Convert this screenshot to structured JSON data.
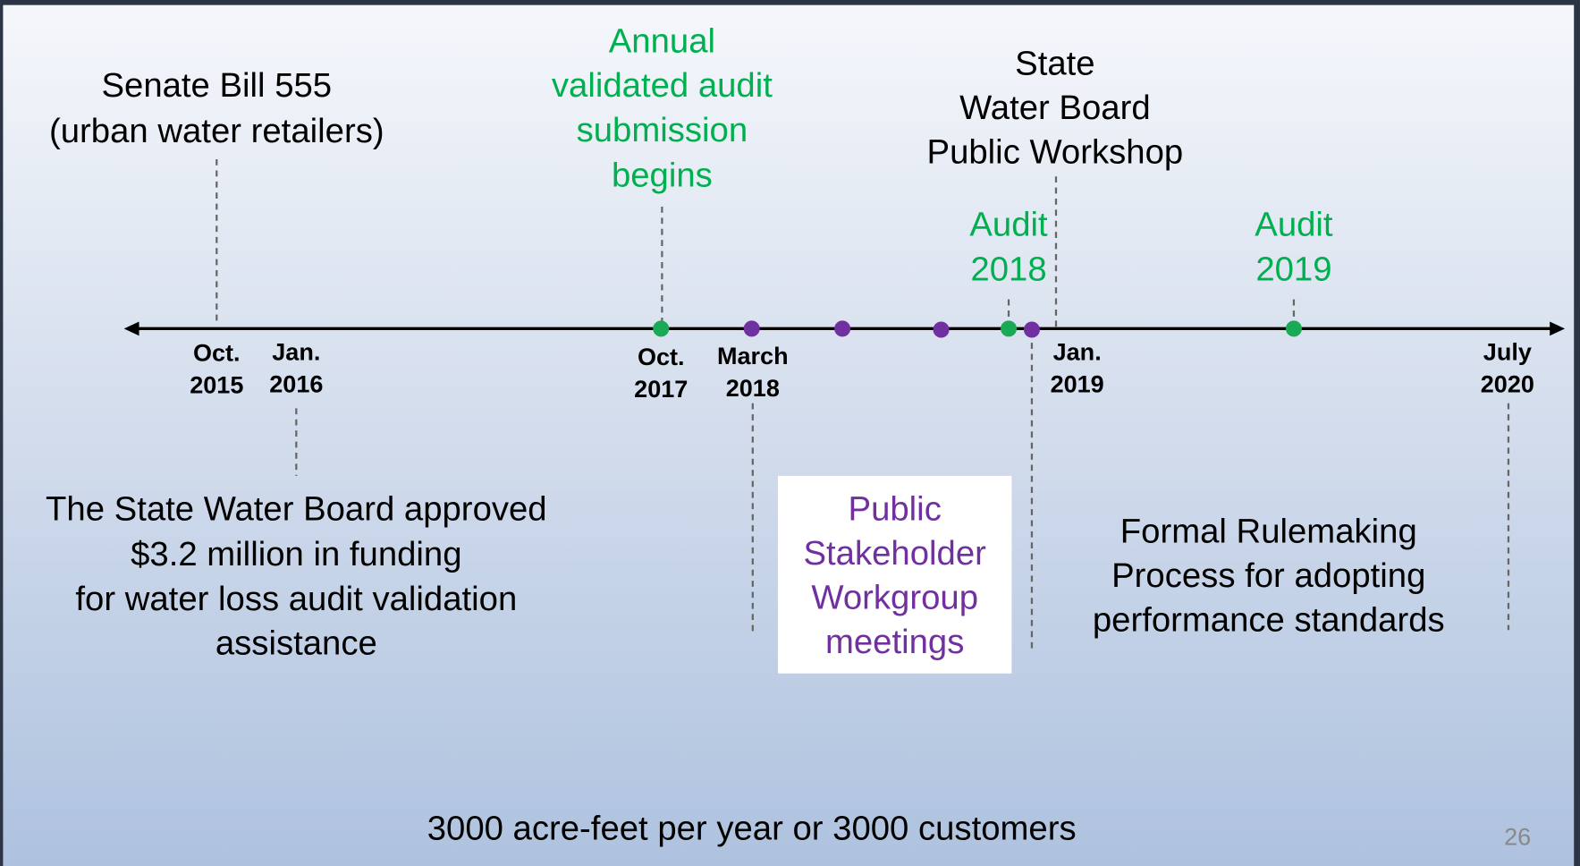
{
  "senate_bill": {
    "lines": [
      "Senate Bill 555",
      "(urban water retailers)"
    ]
  },
  "annual_audit": {
    "lines": [
      "Annual",
      "validated audit",
      "submission",
      "begins"
    ]
  },
  "workshop": {
    "lines": [
      "State",
      "Water Board",
      "Public Workshop"
    ]
  },
  "audit_2018": {
    "lines": [
      "Audit",
      "2018"
    ]
  },
  "audit_2019": {
    "lines": [
      "Audit",
      "2019"
    ]
  },
  "dates": [
    [
      "Oct.",
      "2015"
    ],
    [
      "Jan.",
      "2016"
    ],
    [
      "Oct.",
      "2017"
    ],
    [
      "March",
      "2018"
    ],
    [
      "Jan.",
      "2019"
    ],
    [
      "July",
      "2020"
    ]
  ],
  "funding": {
    "lines": [
      "The State Water Board approved",
      "$3.2 million in funding",
      "for water loss audit validation",
      "assistance"
    ]
  },
  "workgroup": {
    "lines": [
      "Public",
      "Stakeholder",
      "Workgroup",
      "meetings"
    ]
  },
  "rulemaking": {
    "lines": [
      "Formal Rulemaking",
      "Process for adopting",
      "performance standards"
    ]
  },
  "footer": "3000 acre-feet per year or 3000 customers",
  "page_number": "26"
}
